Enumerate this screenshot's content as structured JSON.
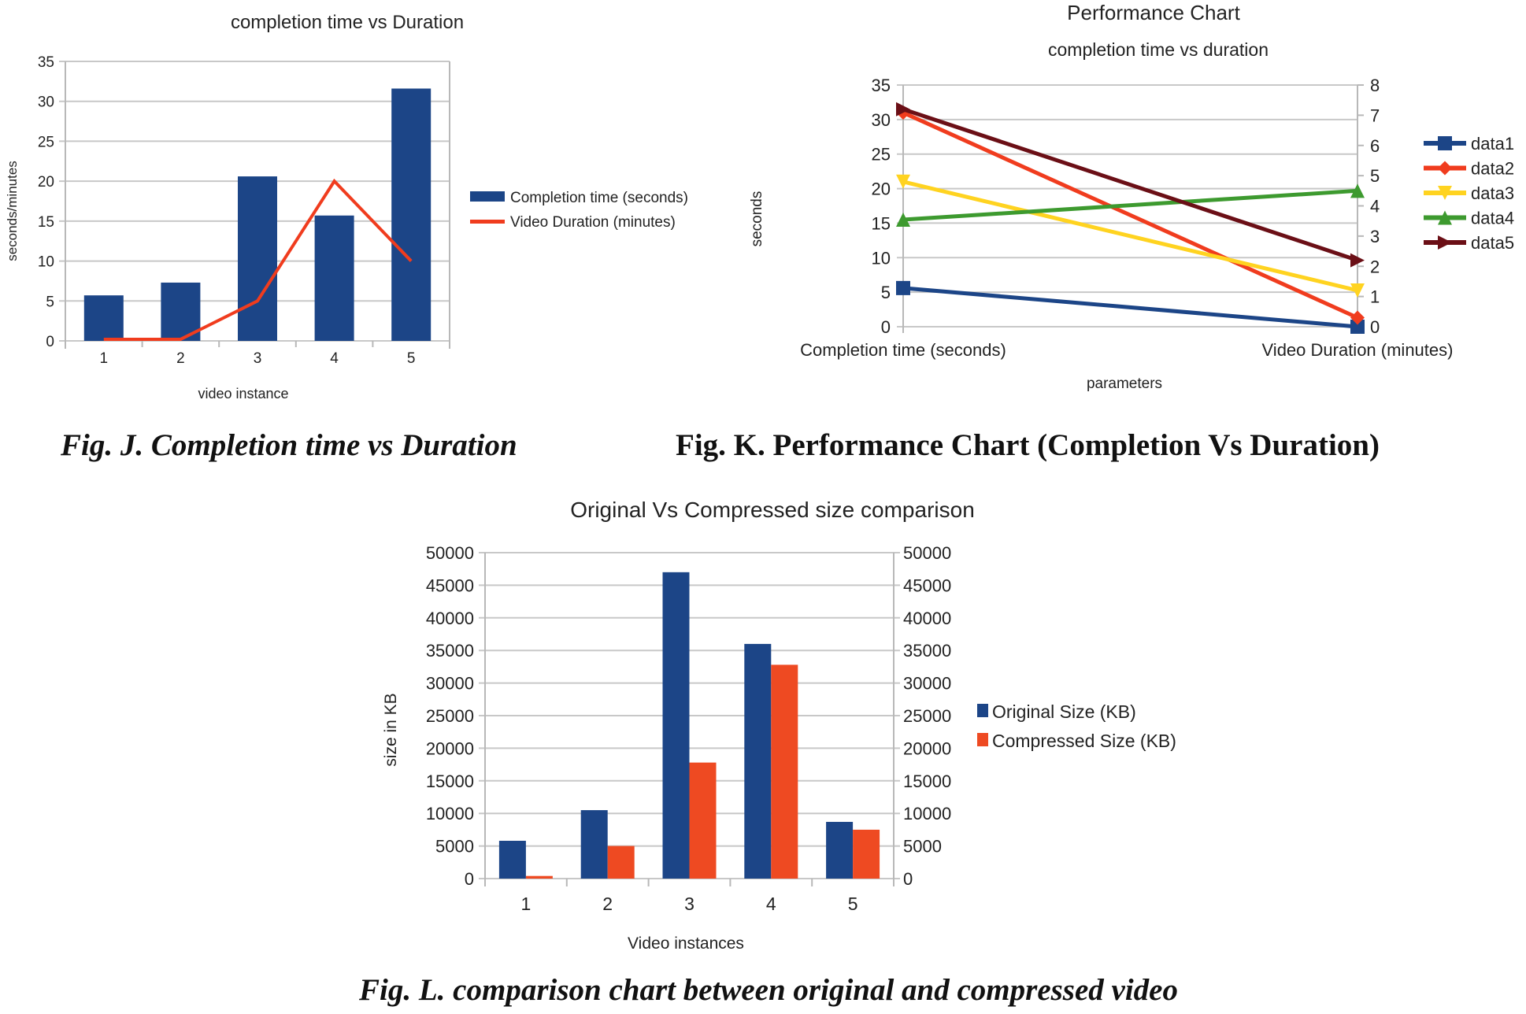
{
  "charts": {
    "colors": {
      "blue": "#1c4587",
      "red": "#f03c1e",
      "orange": "#ee4a22",
      "yellow": "#ffd320",
      "green": "#3d9a2f",
      "maroon": "#6b0f16"
    },
    "figJ": {
      "caption": "Fig. J. Completion time vs Duration"
    },
    "figK": {
      "caption": "Fig. K. Performance Chart (Completion Vs Duration)"
    },
    "figL": {
      "caption": "Fig. L. comparison chart between original and compressed video"
    }
  },
  "chart_data": [
    {
      "type": "bar",
      "title": "completion time vs Duration",
      "xlabel": "video instance",
      "ylabel": "seconds/minutes",
      "categories": [
        "1",
        "2",
        "3",
        "4",
        "5"
      ],
      "ylim": [
        0,
        35
      ],
      "yticks": [
        0,
        5,
        10,
        15,
        20,
        25,
        30,
        35
      ],
      "grid": true,
      "legend": "right",
      "series": [
        {
          "name": "Completion time (seconds)",
          "kind": "bar",
          "color": "#1c4587",
          "values": [
            5.7,
            7.3,
            20.6,
            15.7,
            31.6
          ]
        },
        {
          "name": "Video Duration (minutes)",
          "kind": "line",
          "color": "#f03c1e",
          "values": [
            0.2,
            0.2,
            5,
            20,
            10
          ]
        }
      ]
    },
    {
      "type": "line",
      "title": "Performance Chart",
      "subtitle": "completion time vs duration",
      "xlabel": "parameters",
      "ylabel": "seconds",
      "categories": [
        "Completion time (seconds)",
        "Video Duration (minutes)"
      ],
      "ylim": [
        0,
        35
      ],
      "yticks": [
        0,
        5,
        10,
        15,
        20,
        25,
        30,
        35
      ],
      "y2lim": [
        0,
        8
      ],
      "y2ticks": [
        0,
        1,
        2,
        3,
        4,
        5,
        6,
        7,
        8
      ],
      "grid": true,
      "legend": "right",
      "series": [
        {
          "name": "data1",
          "color": "#1c4587",
          "marker": "square",
          "values": [
            5.6,
            0
          ]
        },
        {
          "name": "data2",
          "color": "#f03c1e",
          "marker": "diamond",
          "values": [
            31,
            0.3
          ]
        },
        {
          "name": "data3",
          "color": "#ffd320",
          "marker": "triangle-down",
          "values": [
            21,
            1.2
          ]
        },
        {
          "name": "data4",
          "color": "#3d9a2f",
          "marker": "triangle-up",
          "values": [
            15.5,
            4.5
          ]
        },
        {
          "name": "data5",
          "color": "#6b0f16",
          "marker": "triangle-right",
          "values": [
            31.5,
            2.2
          ]
        }
      ]
    },
    {
      "type": "bar",
      "title": "Original Vs Compressed size comparison",
      "xlabel": "Video instances",
      "ylabel": "size in KB",
      "categories": [
        "1",
        "2",
        "3",
        "4",
        "5"
      ],
      "ylim": [
        0,
        50000
      ],
      "yticks": [
        0,
        5000,
        10000,
        15000,
        20000,
        25000,
        30000,
        35000,
        40000,
        45000,
        50000
      ],
      "y2ticks": [
        0,
        5000,
        10000,
        15000,
        20000,
        25000,
        30000,
        35000,
        40000,
        45000,
        50000
      ],
      "grid": true,
      "legend": "right",
      "series": [
        {
          "name": "Original Size (KB)",
          "color": "#1c4587",
          "values": [
            5800,
            10500,
            47000,
            36000,
            8700
          ]
        },
        {
          "name": "Compressed Size (KB)",
          "color": "#ee4a22",
          "values": [
            400,
            5000,
            17800,
            32800,
            7500
          ]
        }
      ]
    }
  ]
}
